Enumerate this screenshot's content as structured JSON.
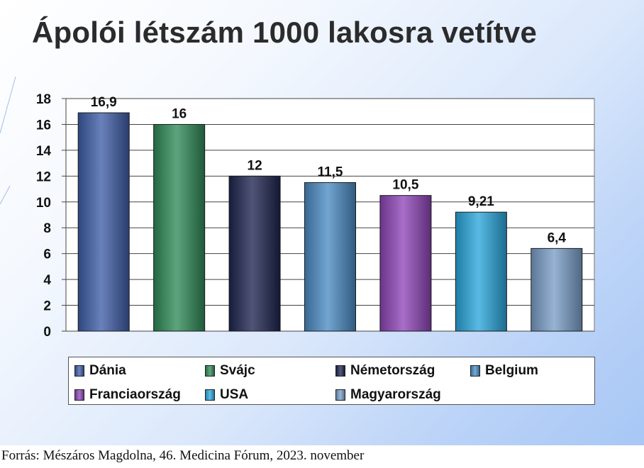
{
  "title": "Ápolói létszám 1000 lakosra vetítve",
  "source": "Forrás: Mészáros Magdolna, 46. Medicina Fórum, 2023. november",
  "chart_data": {
    "type": "bar",
    "categories": [
      "Dánia",
      "Svájc",
      "Németország",
      "Belgium",
      "Franciaország",
      "USA",
      "Magyarország"
    ],
    "values": [
      16.9,
      16,
      12,
      11.5,
      10.5,
      9.21,
      6.4
    ],
    "data_labels": [
      "16,9",
      "16",
      "12",
      "11,5",
      "10,5",
      "9,21",
      "6,4"
    ],
    "colors": [
      "#3f5ea8",
      "#2f8a57",
      "#1e2550",
      "#4a8cc4",
      "#8f45b8",
      "#2aa6dc",
      "#7a9ec8"
    ],
    "ylim": [
      0,
      18
    ],
    "yticks": [
      "0",
      "2",
      "4",
      "6",
      "8",
      "10",
      "12",
      "14",
      "16",
      "18"
    ],
    "grid": true,
    "legend_placement": "bottom",
    "xlabel": "",
    "ylabel": ""
  }
}
